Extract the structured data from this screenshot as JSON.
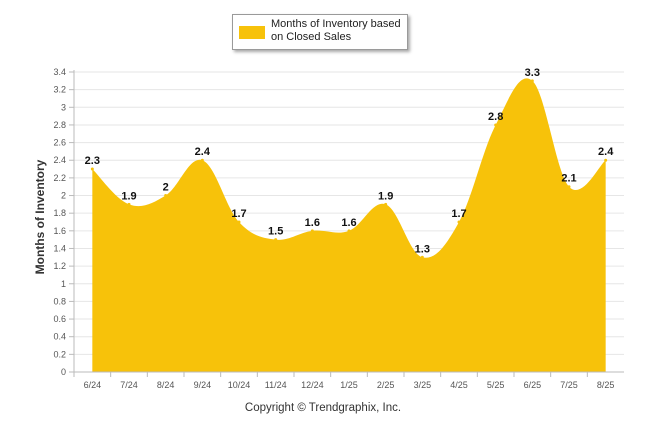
{
  "chart_data": {
    "type": "area",
    "title": "",
    "ylabel": "Months of Inventory",
    "xlabel": "",
    "categories": [
      "6/24",
      "7/24",
      "8/24",
      "9/24",
      "10/24",
      "11/24",
      "12/24",
      "1/25",
      "2/25",
      "3/25",
      "4/25",
      "5/25",
      "6/25",
      "7/25",
      "8/25"
    ],
    "series": [
      {
        "name": "Months of Inventory based on Closed Sales",
        "values": [
          2.3,
          1.9,
          2,
          2.4,
          1.7,
          1.5,
          1.6,
          1.6,
          1.9,
          1.3,
          1.7,
          2.8,
          3.3,
          2.1,
          2.4
        ],
        "labels": [
          "2.3",
          "1.9",
          "2",
          "2.4",
          "1.7",
          "1.5",
          "1.6",
          "1.6",
          "1.9",
          "1.3",
          "1.7",
          "2.8",
          "3.3",
          "2.1",
          "2.4"
        ],
        "color": "#f7c20a"
      }
    ],
    "ylim": [
      0,
      3.4
    ],
    "yticks": [
      "0",
      "0.2",
      "0.4",
      "0.6",
      "0.8",
      "1",
      "1.2",
      "1.4",
      "1.6",
      "1.8",
      "2",
      "2.2",
      "2.4",
      "2.6",
      "2.8",
      "3",
      "3.2",
      "3.4"
    ],
    "grid": true,
    "legend_position": "top-center"
  },
  "footer": {
    "copyright": "Copyright © Trendgraphix, Inc."
  },
  "legend": {
    "label": "Months of Inventory based on Closed Sales"
  }
}
